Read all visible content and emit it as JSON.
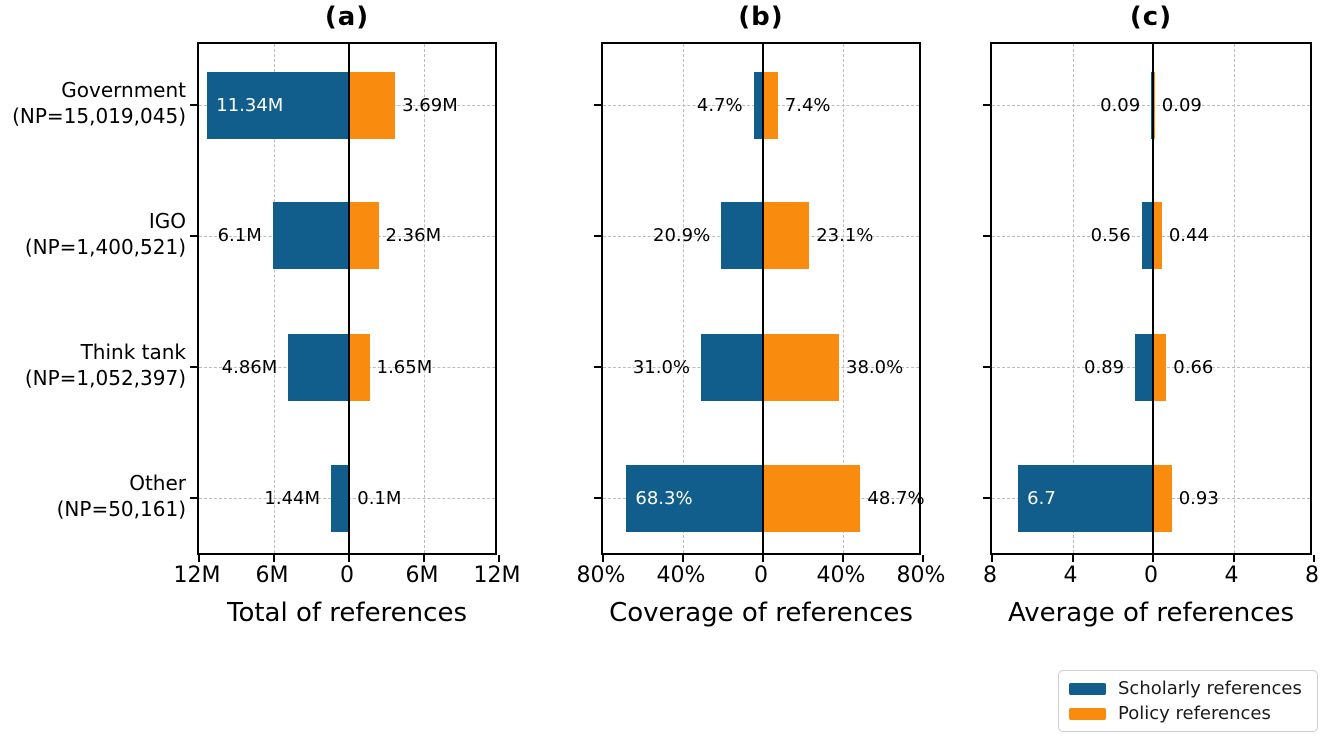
{
  "figure": {
    "colors": {
      "scholarly": "#115d8b",
      "policy": "#f98b0e",
      "grid": "#bcbcbc",
      "axis": "#000000"
    }
  },
  "chart_data": {
    "type": "bar",
    "orientation": "horizontal-diverging",
    "grid": "dashed",
    "legend_position": "bottom-right",
    "categories": [
      {
        "name": "Government",
        "np": "(NP=15,019,045)"
      },
      {
        "name": "IGO",
        "np": "(NP=1,400,521)"
      },
      {
        "name": "Think tank",
        "np": "(NP=1,052,397)"
      },
      {
        "name": "Other",
        "np": "(NP=50,161)"
      }
    ],
    "legend_items": [
      {
        "label": "Scholarly references",
        "color_key": "scholarly",
        "side": "left"
      },
      {
        "label": "Policy references",
        "color_key": "policy",
        "side": "right"
      }
    ],
    "panels": [
      {
        "panel_label": "(a)",
        "xlabel": "Total of references",
        "xmax": 12,
        "xlim": [
          -12,
          12
        ],
        "xticks": [
          "12M",
          "6M",
          "0",
          "6M",
          "12M"
        ],
        "series": [
          {
            "name": "Scholarly references",
            "side": "left",
            "values": [
              11.34,
              6.1,
              4.86,
              1.44
            ],
            "labels": [
              "11.34M",
              "6.1M",
              "4.86M",
              "1.44M"
            ]
          },
          {
            "name": "Policy references",
            "side": "right",
            "values": [
              3.69,
              2.36,
              1.65,
              0.1
            ],
            "labels": [
              "3.69M",
              "2.36M",
              "1.65M",
              "0.1M"
            ]
          }
        ]
      },
      {
        "panel_label": "(b)",
        "xlabel": "Coverage of references",
        "xmax": 80,
        "xlim": [
          -80,
          80
        ],
        "xticks": [
          "80%",
          "40%",
          "0",
          "40%",
          "80%"
        ],
        "series": [
          {
            "name": "Scholarly references",
            "side": "left",
            "values": [
              4.7,
              20.9,
              31.0,
              68.3
            ],
            "labels": [
              "4.7%",
              "20.9%",
              "31.0%",
              "68.3%"
            ]
          },
          {
            "name": "Policy references",
            "side": "right",
            "values": [
              7.4,
              23.1,
              38.0,
              48.7
            ],
            "labels": [
              "7.4%",
              "23.1%",
              "38.0%",
              "48.7%"
            ]
          }
        ]
      },
      {
        "panel_label": "(c)",
        "xlabel": "Average of references",
        "xmax": 8,
        "xlim": [
          -8,
          8
        ],
        "xticks": [
          "8",
          "4",
          "0",
          "4",
          "8"
        ],
        "series": [
          {
            "name": "Scholarly references",
            "side": "left",
            "values": [
              0.09,
              0.56,
              0.89,
              6.7
            ],
            "labels": [
              "0.09",
              "0.56",
              "0.89",
              "6.7"
            ]
          },
          {
            "name": "Policy references",
            "side": "right",
            "values": [
              0.09,
              0.44,
              0.66,
              0.93
            ],
            "labels": [
              "0.09",
              "0.44",
              "0.66",
              "0.93"
            ]
          }
        ]
      }
    ]
  }
}
